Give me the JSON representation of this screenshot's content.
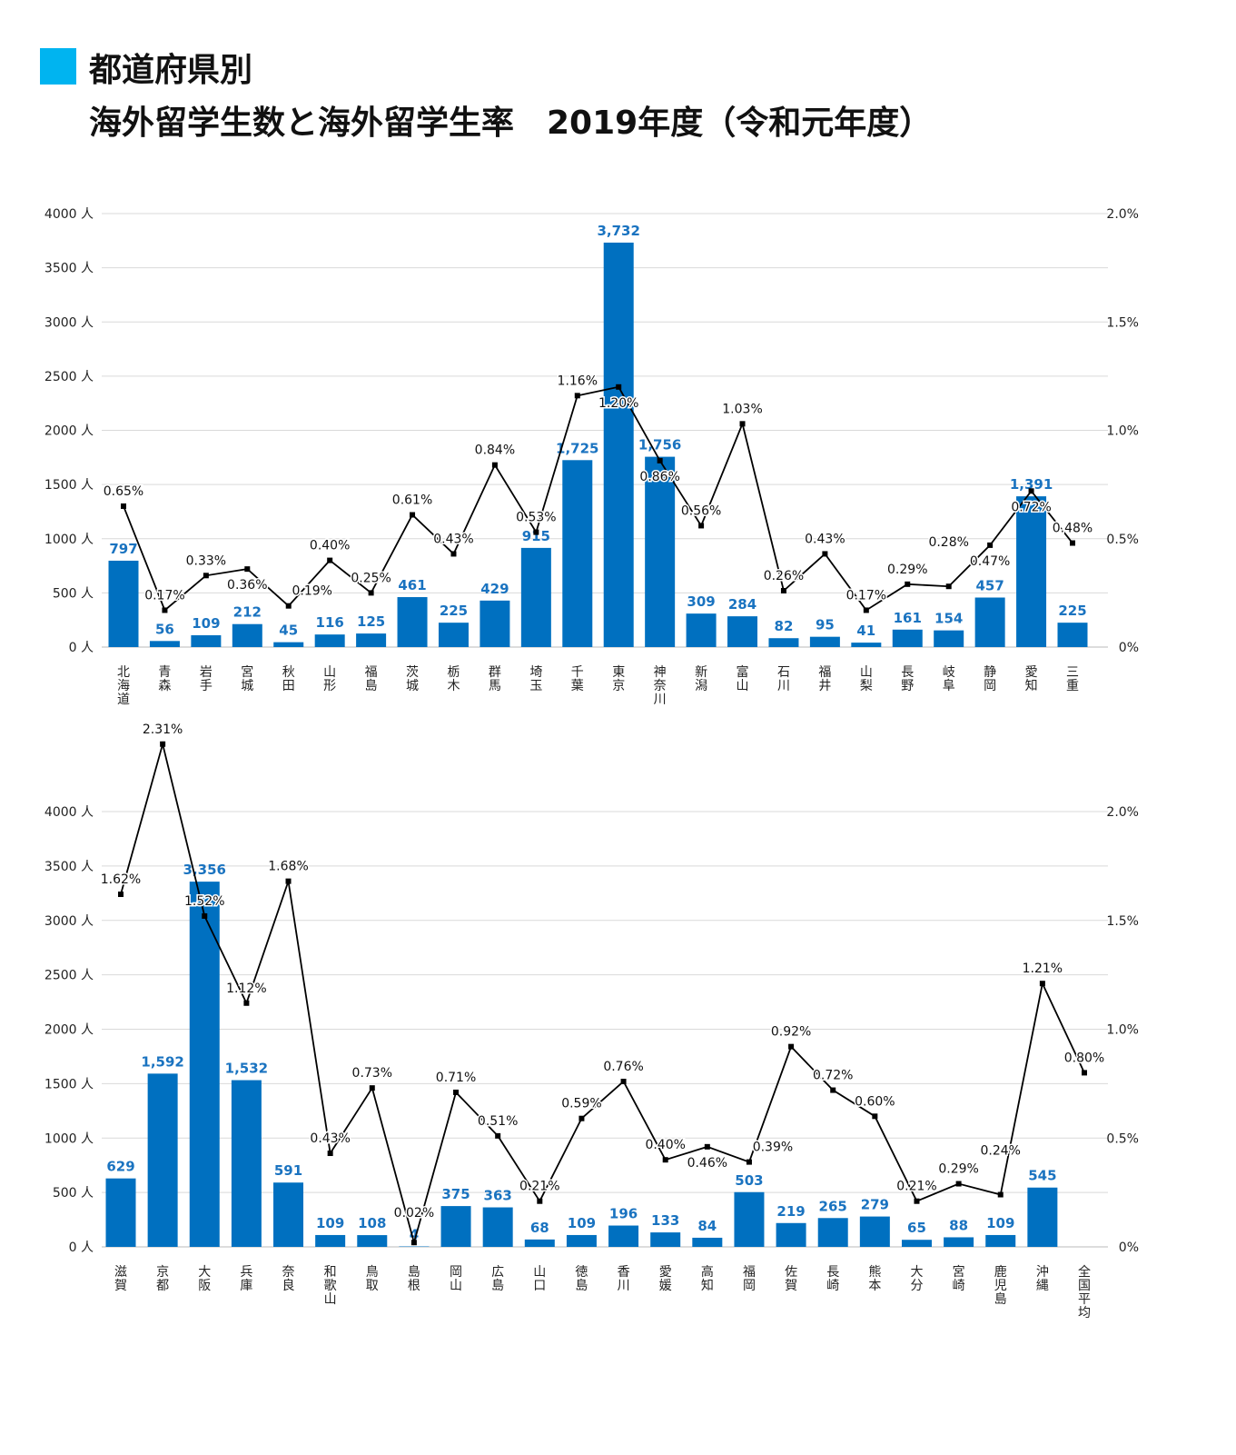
{
  "title": {
    "line1": "都道府県別",
    "line2": "海外留学生数と海外留学生率　2019年度（令和元年度）"
  },
  "colors": {
    "bar": "#0070c0",
    "bar_label": "#1a73c0",
    "line": "#000000",
    "grid": "#d9d9d9",
    "title_marker": "#00b4f0"
  },
  "chart_data": [
    {
      "type": "bar+line",
      "y_left": {
        "ticks": [
          "0 人",
          "500 人",
          "1000 人",
          "1500 人",
          "2000 人",
          "2500 人",
          "3000 人",
          "3500 人",
          "4000 人"
        ],
        "ylim": [
          0,
          4000
        ]
      },
      "y_right": {
        "ticks": [
          "0%",
          "0.5%",
          "1.0%",
          "1.5%",
          "2.0%"
        ],
        "ylim": [
          0,
          2.0
        ]
      },
      "grid": true,
      "categories": [
        "北海道",
        "青森",
        "岩手",
        "宮城",
        "秋田",
        "山形",
        "福島",
        "茨城",
        "栃木",
        "群馬",
        "埼玉",
        "千葉",
        "東京",
        "神奈川",
        "新潟",
        "富山",
        "石川",
        "福井",
        "山梨",
        "長野",
        "岐阜",
        "静岡",
        "愛知",
        "三重"
      ],
      "students": [
        797,
        56,
        109,
        212,
        45,
        116,
        125,
        461,
        225,
        429,
        915,
        1725,
        3732,
        1756,
        309,
        284,
        82,
        95,
        41,
        161,
        154,
        457,
        1391,
        225
      ],
      "student_labels": [
        "797",
        "56",
        "109",
        "212",
        "45",
        "116",
        "125",
        "461",
        "225",
        "429",
        "915",
        "1,725",
        "3,732",
        "1,756",
        "309",
        "284",
        "82",
        "95",
        "41",
        "161",
        "154",
        "457",
        "1,391",
        "225"
      ],
      "rates": [
        0.65,
        0.17,
        0.33,
        0.36,
        0.19,
        0.4,
        0.25,
        0.61,
        0.43,
        0.84,
        0.53,
        1.16,
        1.2,
        0.86,
        0.56,
        1.03,
        0.26,
        0.43,
        0.17,
        0.29,
        0.28,
        0.47,
        0.72,
        0.48
      ],
      "rate_labels": [
        "0.65%",
        "0.17%",
        "0.33%",
        "0.36%",
        "0.19%",
        "0.40%",
        "0.25%",
        "0.61%",
        "0.43%",
        "0.84%",
        "0.53%",
        "1.16%",
        "1.20%",
        "0.86%",
        "0.56%",
        "1.03%",
        "0.26%",
        "0.43%",
        "0.17%",
        "0.29%",
        "0.28%",
        "0.47%",
        "0.72%",
        "0.48%"
      ]
    },
    {
      "type": "bar+line",
      "y_left": {
        "ticks": [
          "0 人",
          "500 人",
          "1000 人",
          "1500 人",
          "2000 人",
          "2500 人",
          "3000 人",
          "3500 人",
          "4000 人"
        ],
        "ylim": [
          0,
          4000
        ]
      },
      "y_right": {
        "ticks": [
          "0%",
          "0.5%",
          "1.0%",
          "1.5%",
          "2.0%"
        ],
        "ylim": [
          0,
          2.0
        ]
      },
      "grid": true,
      "categories": [
        "滋賀",
        "京都",
        "大阪",
        "兵庫",
        "奈良",
        "和歌山",
        "鳥取",
        "島根",
        "岡山",
        "広島",
        "山口",
        "徳島",
        "香川",
        "愛媛",
        "高知",
        "福岡",
        "佐賀",
        "長崎",
        "熊本",
        "大分",
        "宮崎",
        "鹿児島",
        "沖縄",
        "全国平均"
      ],
      "students": [
        629,
        1592,
        3356,
        1532,
        591,
        109,
        108,
        4,
        375,
        363,
        68,
        109,
        196,
        133,
        84,
        503,
        219,
        265,
        279,
        65,
        88,
        109,
        545,
        null
      ],
      "student_labels": [
        "629",
        "1,592",
        "3,356",
        "1,532",
        "591",
        "109",
        "108",
        "4",
        "375",
        "363",
        "68",
        "109",
        "196",
        "133",
        "84",
        "503",
        "219",
        "265",
        "279",
        "65",
        "88",
        "109",
        "545",
        ""
      ],
      "rates": [
        1.62,
        2.31,
        1.52,
        1.12,
        1.68,
        0.43,
        0.73,
        0.02,
        0.71,
        0.51,
        0.21,
        0.59,
        0.76,
        0.4,
        0.46,
        0.39,
        0.92,
        0.72,
        0.6,
        0.21,
        0.29,
        0.24,
        1.21,
        0.8
      ],
      "rate_labels": [
        "1.62%",
        "2.31%",
        "1.52%",
        "1.12%",
        "1.68%",
        "0.43%",
        "0.73%",
        "0.02%",
        "0.71%",
        "0.51%",
        "0.21%",
        "0.59%",
        "0.76%",
        "0.40%",
        "0.46%",
        "0.39%",
        "0.92%",
        "0.72%",
        "0.60%",
        "0.21%",
        "0.29%",
        "0.24%",
        "1.21%",
        "0.80%"
      ]
    }
  ]
}
